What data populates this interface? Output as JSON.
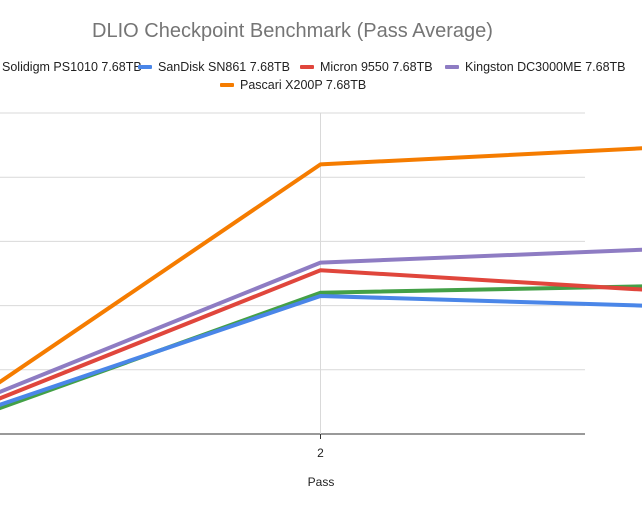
{
  "chart_data": {
    "type": "line",
    "title": "DLIO Checkpoint Benchmark (Pass Average)",
    "xlabel": "Pass",
    "ylabel": "",
    "x": [
      1,
      2,
      3
    ],
    "x_tick_labels": [
      "2"
    ],
    "xlim": [
      1,
      3
    ],
    "ylim": [
      0,
      5
    ],
    "grid": true,
    "legend_position": "top",
    "series": [
      {
        "name": "Solidigm PS1010 7.68TB",
        "color": "#43a047",
        "values": [
          0.4,
          2.2,
          2.3
        ]
      },
      {
        "name": "SanDisk SN861 7.68TB",
        "color": "#4a86e8",
        "values": [
          0.45,
          2.15,
          2.0
        ]
      },
      {
        "name": "Micron 9550 7.68TB",
        "color": "#e0463c",
        "values": [
          0.55,
          2.55,
          2.25
        ]
      },
      {
        "name": "Kingston DC3000ME 7.68TB",
        "color": "#8e7cc3",
        "values": [
          0.65,
          2.67,
          2.87
        ]
      },
      {
        "name": "Pascari X200P 7.68TB",
        "color": "#f57c00",
        "values": [
          0.8,
          4.2,
          4.45
        ]
      }
    ]
  }
}
